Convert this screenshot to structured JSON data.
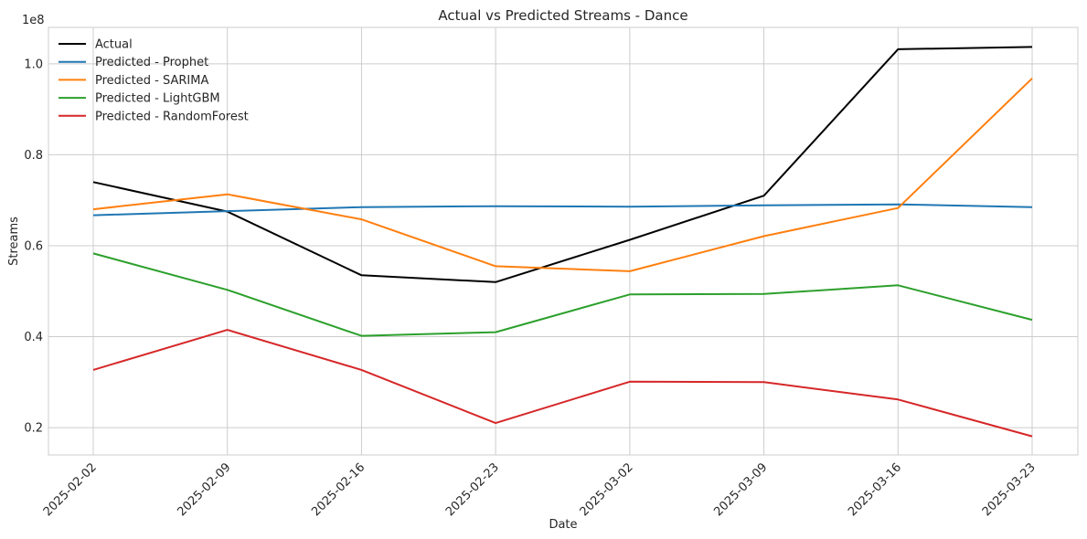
{
  "chart_data": {
    "type": "line",
    "title": "Actual vs Predicted Streams - Dance",
    "xlabel": "Date",
    "ylabel": "Streams",
    "y_multiplier_label": "1e8",
    "x": [
      "2025-02-02",
      "2025-02-09",
      "2025-02-16",
      "2025-02-23",
      "2025-03-02",
      "2025-03-09",
      "2025-03-16",
      "2025-03-23"
    ],
    "y_ticks": [
      0.2,
      0.4,
      0.6,
      0.8,
      1.0
    ],
    "y_tick_labels": [
      "0.2",
      "0.4",
      "0.6",
      "0.8",
      "1.0"
    ],
    "ylim": [
      0.14,
      1.08
    ],
    "grid": true,
    "legend_position": "top-left",
    "series": [
      {
        "name": "Actual",
        "color": "#000000",
        "values": [
          0.74,
          0.675,
          0.535,
          0.52,
          0.613,
          0.71,
          1.032,
          1.037
        ]
      },
      {
        "name": "Predicted - Prophet",
        "color": "#1f77b4",
        "values": [
          0.667,
          0.676,
          0.685,
          0.687,
          0.686,
          0.689,
          0.691,
          0.685
        ]
      },
      {
        "name": "Predicted - SARIMA",
        "color": "#ff7f0e",
        "values": [
          0.68,
          0.713,
          0.658,
          0.555,
          0.544,
          0.621,
          0.683,
          0.968
        ]
      },
      {
        "name": "Predicted - LightGBM",
        "color": "#2ca02c",
        "values": [
          0.583,
          0.503,
          0.402,
          0.41,
          0.493,
          0.494,
          0.513,
          0.437
        ]
      },
      {
        "name": "Predicted - RandomForest",
        "color": "#d62728",
        "values": [
          0.327,
          0.415,
          0.327,
          0.21,
          0.301,
          0.3,
          0.262,
          0.181
        ]
      }
    ]
  }
}
